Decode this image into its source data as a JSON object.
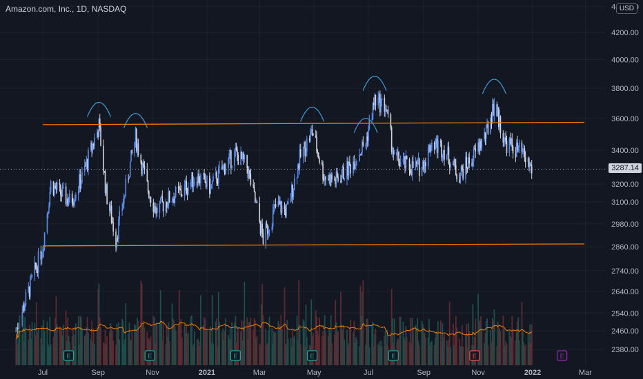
{
  "header": {
    "symbol_title": "Amazon.com, Inc., 1D, NASDAQ",
    "currency": "USD"
  },
  "chart_data": {
    "type": "candlestick",
    "title": "Amazon.com, Inc., 1D, NASDAQ",
    "y_axis": {
      "ticks": [
        4400,
        4200,
        4000,
        3800,
        3600,
        3400,
        3200,
        3100,
        2980,
        2860,
        2740,
        2640,
        2540,
        2460,
        2380
      ],
      "tick_labels": [
        "4400.00",
        "4200.00",
        "4000.00",
        "3800.00",
        "3600.00",
        "3400.00",
        "3200.00",
        "3100.00",
        "2980.00",
        "2860.00",
        "2740.00",
        "2640.00",
        "2540.00",
        "2460.00",
        "2380.00"
      ],
      "scale": "log"
    },
    "x_axis": {
      "tick_labels": [
        "Jul",
        "Sep",
        "Nov",
        "2021",
        "Mar",
        "May",
        "Jul",
        "Sep",
        "Nov",
        "2022",
        "Mar"
      ]
    },
    "last_price": 3287.14,
    "last_price_label": "3287.14",
    "price_path": [
      [
        "2020-06-01",
        2460
      ],
      [
        "2020-06-15",
        2640
      ],
      [
        "2020-07-01",
        2860
      ],
      [
        "2020-07-10",
        3200
      ],
      [
        "2020-07-20",
        3150
      ],
      [
        "2020-08-01",
        3100
      ],
      [
        "2020-08-15",
        3250
      ],
      [
        "2020-09-02",
        3550
      ],
      [
        "2020-09-10",
        3150
      ],
      [
        "2020-09-21",
        2900
      ],
      [
        "2020-10-01",
        3150
      ],
      [
        "2020-10-13",
        3480
      ],
      [
        "2020-10-25",
        3200
      ],
      [
        "2020-11-05",
        3050
      ],
      [
        "2020-11-20",
        3120
      ],
      [
        "2020-12-05",
        3160
      ],
      [
        "2020-12-20",
        3250
      ],
      [
        "2021-01-05",
        3180
      ],
      [
        "2021-01-20",
        3300
      ],
      [
        "2021-02-02",
        3380
      ],
      [
        "2021-02-15",
        3300
      ],
      [
        "2021-03-05",
        2900
      ],
      [
        "2021-03-20",
        3080
      ],
      [
        "2021-04-01",
        3050
      ],
      [
        "2021-04-15",
        3350
      ],
      [
        "2021-04-29",
        3520
      ],
      [
        "2021-05-12",
        3250
      ],
      [
        "2021-05-25",
        3220
      ],
      [
        "2021-06-10",
        3300
      ],
      [
        "2021-06-28",
        3450
      ],
      [
        "2021-07-08",
        3720
      ],
      [
        "2021-07-20",
        3680
      ],
      [
        "2021-07-30",
        3350
      ],
      [
        "2021-08-15",
        3300
      ],
      [
        "2021-08-30",
        3300
      ],
      [
        "2021-09-10",
        3450
      ],
      [
        "2021-09-25",
        3400
      ],
      [
        "2021-10-10",
        3250
      ],
      [
        "2021-10-25",
        3350
      ],
      [
        "2021-11-10",
        3500
      ],
      [
        "2021-11-19",
        3700
      ],
      [
        "2021-12-01",
        3450
      ],
      [
        "2021-12-20",
        3380
      ],
      [
        "2021-12-31",
        3287
      ]
    ],
    "volume_ma_series": true,
    "annotations": {
      "resistance_line": [
        [
          3560,
          "2020-07-01"
        ],
        [
          3575,
          "2022-02-28"
        ]
      ],
      "support_line": [
        [
          2865,
          "2020-07-01"
        ],
        [
          2875,
          "2022-02-28"
        ]
      ],
      "arc_peaks": [
        "2020-09-02",
        "2020-10-13",
        "2021-04-29",
        "2021-06-28",
        "2021-07-08",
        "2021-11-19"
      ]
    },
    "earnings_markers": [
      {
        "label": "E",
        "date": "2020-07-30",
        "color": "#26a69a"
      },
      {
        "label": "E",
        "date": "2020-10-29",
        "color": "#26a69a"
      },
      {
        "label": "E",
        "date": "2021-02-02",
        "color": "#26a69a"
      },
      {
        "label": "E",
        "date": "2021-04-29",
        "color": "#26a69a"
      },
      {
        "label": "E",
        "date": "2021-07-29",
        "color": "#26a69a"
      },
      {
        "label": "E",
        "date": "2021-10-28",
        "color": "#ef5350"
      },
      {
        "label": "E",
        "date": "2022-02-03",
        "color": "#9c27b0"
      }
    ]
  },
  "colors": {
    "background": "#131722",
    "up": "#5b8def",
    "down": "#d1d4dc",
    "vol_up": "#1f4d4a",
    "vol_down": "#5c2a30",
    "line": "#f57c00",
    "arc": "#3d9cd6"
  }
}
